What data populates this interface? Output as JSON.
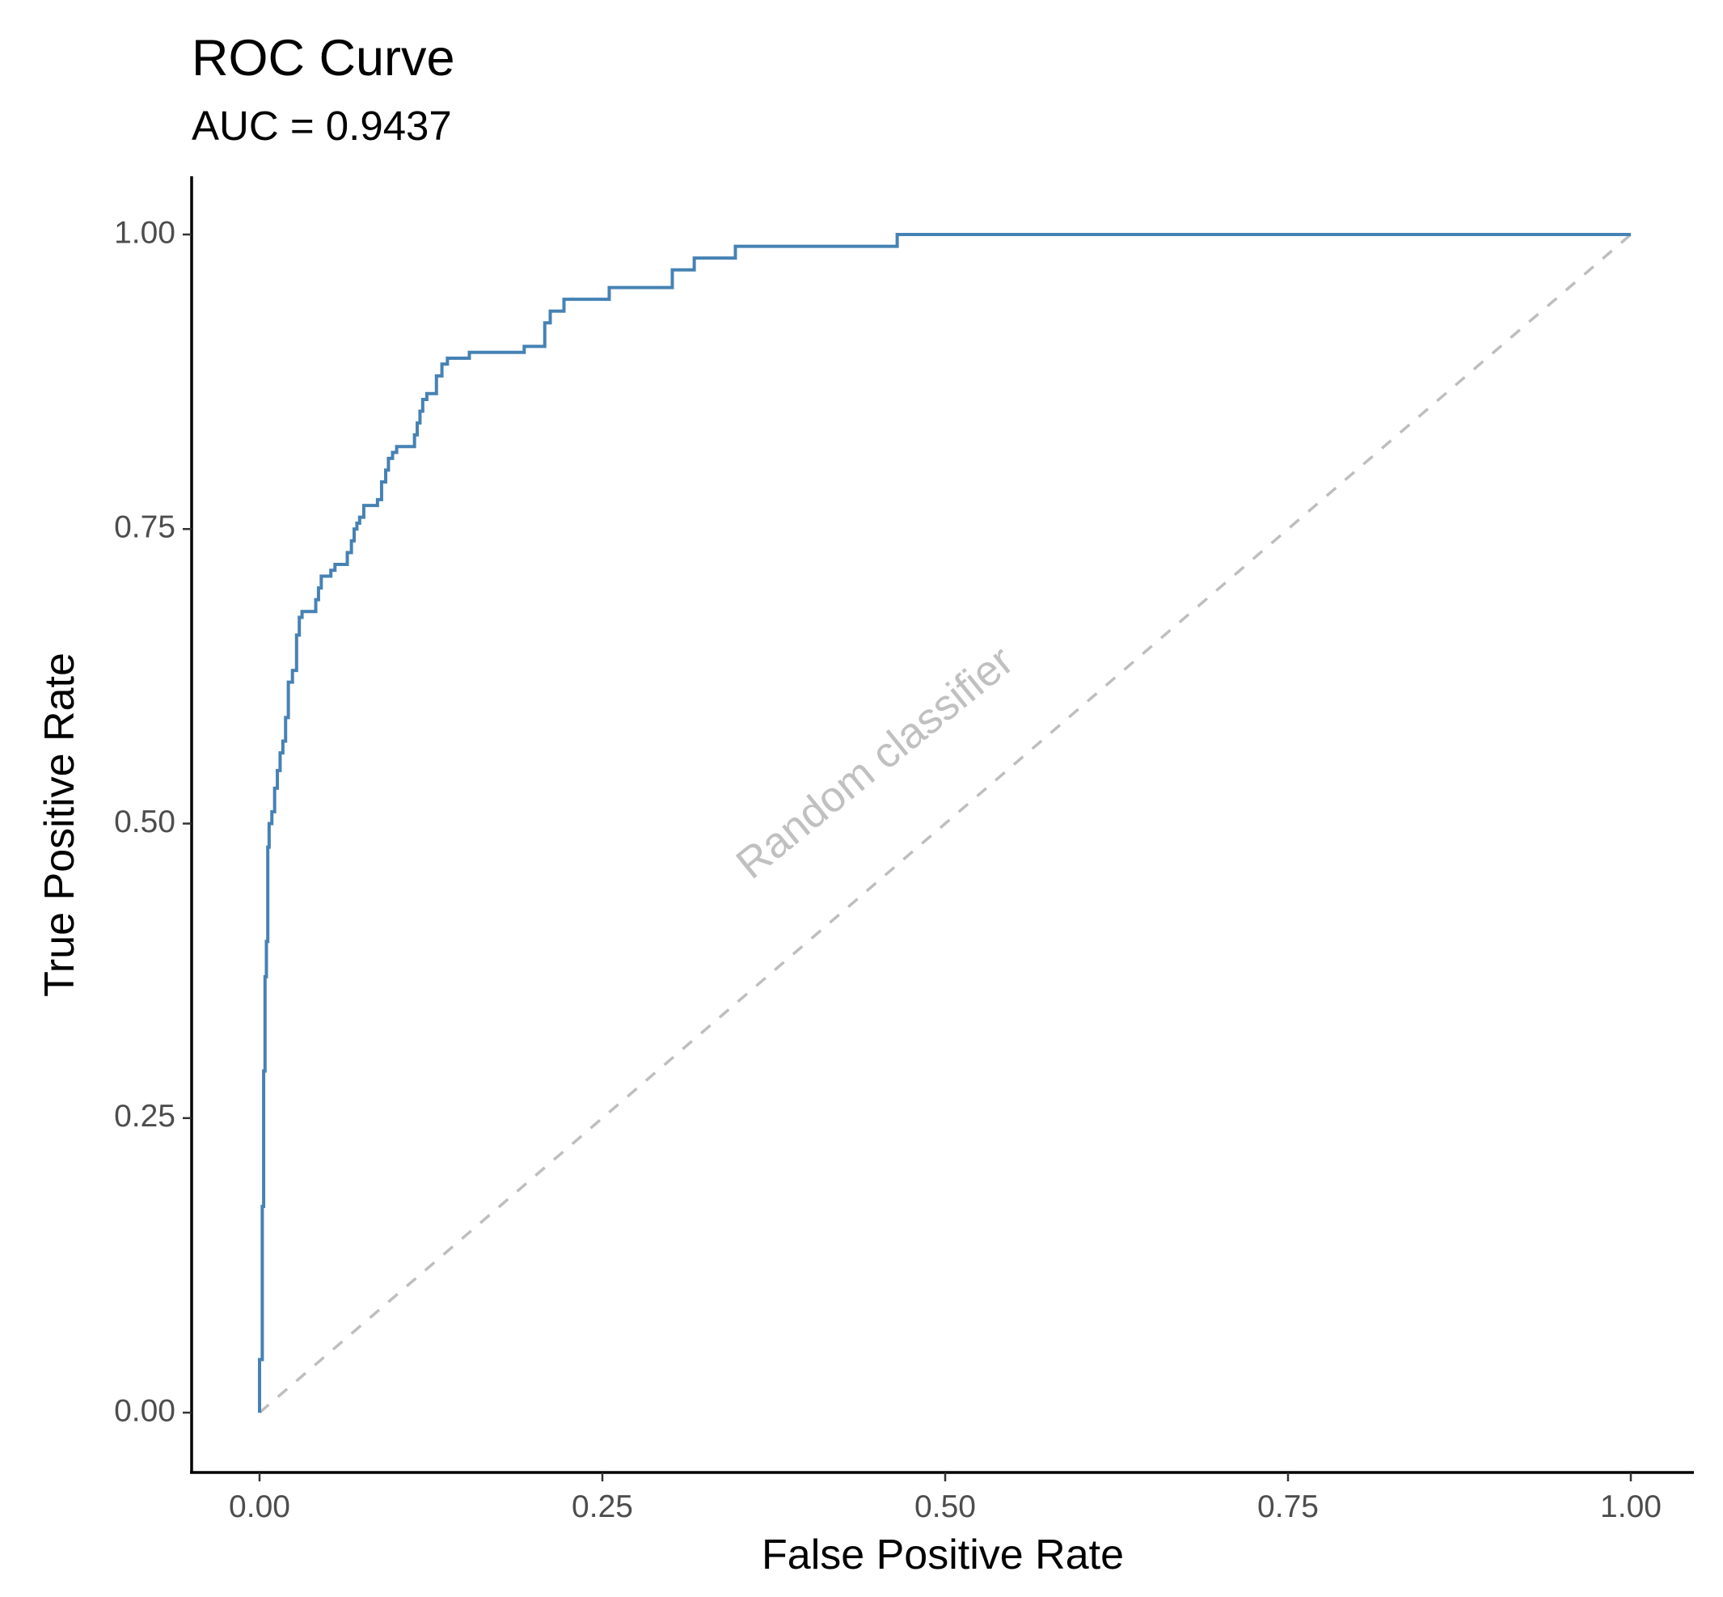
{
  "chart_data": {
    "type": "line",
    "title": "ROC Curve",
    "subtitle": "AUC = 0.9437",
    "xlabel": "False Positive Rate",
    "ylabel": "True Positive Rate",
    "xlim": [
      0,
      1
    ],
    "ylim": [
      0,
      1
    ],
    "x_ticks": [
      0,
      0.25,
      0.5,
      0.75,
      1
    ],
    "x_tick_labels": [
      "0.00",
      "0.25",
      "0.50",
      "0.75",
      "1.00"
    ],
    "y_ticks": [
      0,
      0.25,
      0.5,
      0.75,
      1
    ],
    "y_tick_labels": [
      "0.00",
      "0.25",
      "0.50",
      "0.75",
      "1.00"
    ],
    "grid": false,
    "legend": "none",
    "series": [
      {
        "name": "ROC",
        "color": "#4682b4",
        "line_style": "solid",
        "step": true,
        "x": [
          0.0,
          0.0,
          0.002,
          0.002,
          0.003,
          0.003,
          0.004,
          0.004,
          0.005,
          0.005,
          0.006,
          0.006,
          0.007,
          0.007,
          0.009,
          0.009,
          0.011,
          0.011,
          0.013,
          0.013,
          0.015,
          0.015,
          0.017,
          0.017,
          0.019,
          0.019,
          0.021,
          0.021,
          0.024,
          0.024,
          0.027,
          0.027,
          0.029,
          0.029,
          0.031,
          0.031,
          0.041,
          0.041,
          0.043,
          0.043,
          0.045,
          0.045,
          0.052,
          0.052,
          0.055,
          0.055,
          0.064,
          0.064,
          0.067,
          0.067,
          0.069,
          0.069,
          0.071,
          0.071,
          0.073,
          0.073,
          0.076,
          0.076,
          0.086,
          0.086,
          0.089,
          0.089,
          0.092,
          0.092,
          0.094,
          0.094,
          0.097,
          0.097,
          0.1,
          0.1,
          0.113,
          0.113,
          0.115,
          0.115,
          0.117,
          0.117,
          0.119,
          0.119,
          0.122,
          0.122,
          0.129,
          0.129,
          0.133,
          0.133,
          0.137,
          0.137,
          0.153,
          0.153,
          0.193,
          0.193,
          0.208,
          0.208,
          0.212,
          0.212,
          0.222,
          0.222,
          0.255,
          0.255,
          0.301,
          0.301,
          0.317,
          0.317,
          0.347,
          0.347,
          0.465,
          0.465,
          1.0
        ],
        "y": [
          0.0,
          0.045,
          0.045,
          0.175,
          0.175,
          0.29,
          0.29,
          0.37,
          0.37,
          0.4,
          0.4,
          0.48,
          0.48,
          0.5,
          0.5,
          0.51,
          0.51,
          0.53,
          0.53,
          0.545,
          0.545,
          0.56,
          0.56,
          0.57,
          0.57,
          0.59,
          0.59,
          0.62,
          0.62,
          0.63,
          0.63,
          0.66,
          0.66,
          0.675,
          0.675,
          0.68,
          0.68,
          0.69,
          0.69,
          0.7,
          0.7,
          0.71,
          0.71,
          0.715,
          0.715,
          0.72,
          0.72,
          0.73,
          0.73,
          0.74,
          0.74,
          0.75,
          0.75,
          0.755,
          0.755,
          0.76,
          0.76,
          0.77,
          0.77,
          0.775,
          0.775,
          0.79,
          0.79,
          0.8,
          0.8,
          0.81,
          0.81,
          0.815,
          0.815,
          0.82,
          0.82,
          0.83,
          0.83,
          0.84,
          0.84,
          0.85,
          0.85,
          0.86,
          0.86,
          0.865,
          0.865,
          0.88,
          0.88,
          0.89,
          0.89,
          0.895,
          0.895,
          0.9,
          0.9,
          0.905,
          0.905,
          0.925,
          0.925,
          0.935,
          0.935,
          0.945,
          0.945,
          0.955,
          0.955,
          0.97,
          0.97,
          0.98,
          0.98,
          0.99,
          0.99,
          1.0,
          1.0
        ]
      },
      {
        "name": "Random classifier",
        "color": "#bebebe",
        "line_style": "dashed",
        "x": [
          0,
          1
        ],
        "y": [
          0,
          1
        ]
      }
    ],
    "annotations": [
      {
        "text": "Random classifier",
        "x": 0.45,
        "y": 0.55,
        "rotation_deg": -39,
        "color": "#c0c0c0"
      }
    ]
  }
}
